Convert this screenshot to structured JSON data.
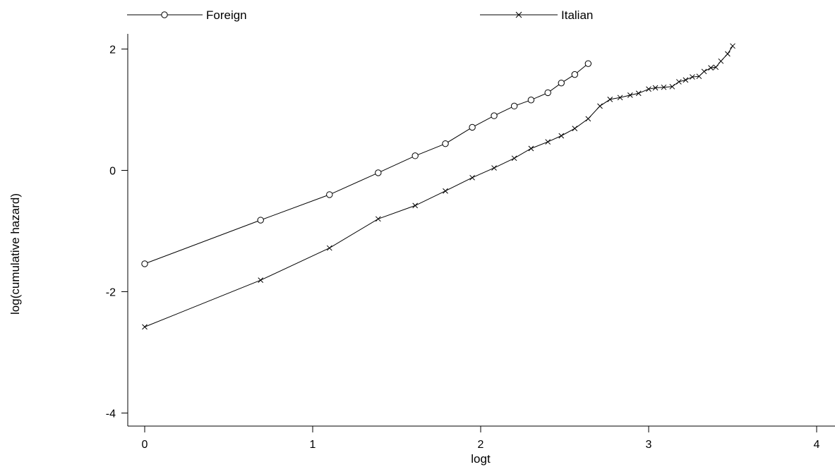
{
  "chart_data": {
    "type": "line",
    "title": "",
    "xlabel": "logt",
    "ylabel": "log(cumulative hazard)",
    "xlim": [
      0,
      4
    ],
    "ylim": [
      -4,
      2
    ],
    "xticks": [
      "0",
      "1",
      "2",
      "3",
      "4"
    ],
    "yticks": [
      "-4",
      "-2",
      "0",
      "2"
    ],
    "grid": false,
    "legend_position": "top",
    "series": [
      {
        "name": "Foreign",
        "marker": "circle",
        "color": "#000000",
        "x": [
          0.0,
          0.69,
          1.1,
          1.39,
          1.61,
          1.79,
          1.95,
          2.08,
          2.2,
          2.3,
          2.4,
          2.48,
          2.56,
          2.64
        ],
        "y": [
          -1.54,
          -0.82,
          -0.4,
          -0.04,
          0.24,
          0.44,
          0.71,
          0.9,
          1.06,
          1.16,
          1.28,
          1.44,
          1.58,
          1.76
        ]
      },
      {
        "name": "Italian",
        "marker": "cross",
        "color": "#000000",
        "x": [
          0.0,
          0.69,
          1.1,
          1.39,
          1.61,
          1.79,
          1.95,
          2.08,
          2.2,
          2.3,
          2.4,
          2.48,
          2.56,
          2.64,
          2.71,
          2.77,
          2.83,
          2.89,
          2.94,
          3.0,
          3.04,
          3.09,
          3.14,
          3.18,
          3.22,
          3.26,
          3.3,
          3.33,
          3.37,
          3.4,
          3.43,
          3.47,
          3.5
        ],
        "y": [
          -2.58,
          -1.81,
          -1.28,
          -0.8,
          -0.58,
          -0.34,
          -0.12,
          0.04,
          0.2,
          0.36,
          0.47,
          0.57,
          0.69,
          0.85,
          1.06,
          1.17,
          1.2,
          1.24,
          1.27,
          1.34,
          1.36,
          1.37,
          1.38,
          1.46,
          1.49,
          1.54,
          1.55,
          1.63,
          1.69,
          1.7,
          1.8,
          1.92,
          2.05
        ]
      }
    ]
  }
}
